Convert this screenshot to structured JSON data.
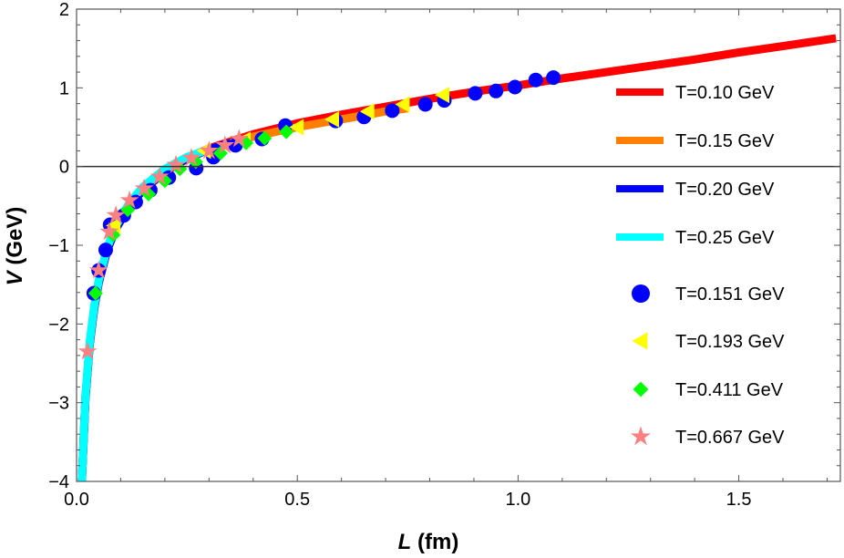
{
  "chart_data": {
    "type": "line",
    "title": "",
    "xlabel": "L (fm)",
    "xlabel_var": "L",
    "xlabel_unit": " (fm)",
    "ylabel": "V (GeV)",
    "ylabel_var": "V",
    "ylabel_unit": " (GeV)",
    "xlim": [
      0.0,
      1.73
    ],
    "ylim": [
      -4,
      2
    ],
    "x_ticks": [
      0.0,
      0.5,
      1.0,
      1.5
    ],
    "x_tick_labels": [
      "0.0",
      "0.5",
      "1.0",
      "1.5"
    ],
    "y_ticks": [
      -4,
      -3,
      -2,
      -1,
      0,
      1,
      2
    ],
    "y_tick_labels": [
      "−4",
      "−3",
      "−2",
      "−1",
      "0",
      "1",
      "2"
    ],
    "grid": false,
    "zero_line": true,
    "legend_position": "right",
    "series": [
      {
        "name": "T=0.10 GeV",
        "kind": "line",
        "color": "#ff0000",
        "x": [
          0.012,
          0.02,
          0.03,
          0.04,
          0.05,
          0.07,
          0.09,
          0.12,
          0.15,
          0.2,
          0.25,
          0.3,
          0.4,
          0.5,
          0.6,
          0.7,
          0.8,
          0.9,
          1.0,
          1.1,
          1.2,
          1.3,
          1.4,
          1.5,
          1.6,
          1.72
        ],
        "y": [
          -4.0,
          -2.95,
          -2.25,
          -1.8,
          -1.48,
          -1.05,
          -0.78,
          -0.5,
          -0.3,
          -0.07,
          0.1,
          0.23,
          0.41,
          0.55,
          0.66,
          0.76,
          0.86,
          0.95,
          1.03,
          1.12,
          1.2,
          1.28,
          1.36,
          1.45,
          1.53,
          1.63
        ]
      },
      {
        "name": "T=0.15 GeV",
        "kind": "line",
        "color": "#ff8000",
        "x": [
          0.012,
          0.02,
          0.03,
          0.04,
          0.05,
          0.07,
          0.09,
          0.12,
          0.15,
          0.2,
          0.25,
          0.3,
          0.4,
          0.5,
          0.6,
          0.7,
          0.75
        ],
        "y": [
          -4.0,
          -2.95,
          -2.25,
          -1.8,
          -1.48,
          -1.05,
          -0.78,
          -0.5,
          -0.3,
          -0.07,
          0.1,
          0.22,
          0.38,
          0.5,
          0.6,
          0.7,
          0.74
        ]
      },
      {
        "name": "T=0.20 GeV",
        "kind": "line",
        "color": "#0000ff",
        "x": [
          0.012,
          0.02,
          0.03,
          0.04,
          0.05,
          0.07,
          0.09,
          0.12,
          0.15,
          0.2,
          0.25,
          0.3,
          0.35
        ],
        "y": [
          -4.0,
          -2.95,
          -2.25,
          -1.8,
          -1.48,
          -1.05,
          -0.78,
          -0.5,
          -0.3,
          -0.06,
          0.1,
          0.22,
          0.3
        ]
      },
      {
        "name": "T=0.25 GeV",
        "kind": "line",
        "color": "#00ffff",
        "x": [
          0.012,
          0.02,
          0.03,
          0.04,
          0.05,
          0.07,
          0.09,
          0.12,
          0.15,
          0.2,
          0.25,
          0.3
        ],
        "y": [
          -4.0,
          -2.92,
          -2.22,
          -1.77,
          -1.45,
          -1.02,
          -0.74,
          -0.46,
          -0.26,
          -0.03,
          0.12,
          0.22
        ]
      },
      {
        "name": "T=0.151 GeV",
        "kind": "scatter",
        "marker": "circle",
        "color": "#0000ff",
        "x": [
          0.039,
          0.05,
          0.066,
          0.076,
          0.107,
          0.134,
          0.167,
          0.209,
          0.271,
          0.31,
          0.36,
          0.473,
          0.42,
          0.587,
          0.651,
          0.715,
          0.79,
          0.833,
          0.903,
          0.95,
          0.993,
          1.04,
          1.08
        ],
        "y": [
          -1.61,
          -1.32,
          -1.06,
          -0.74,
          -0.62,
          -0.45,
          -0.3,
          -0.14,
          -0.02,
          0.12,
          0.27,
          0.52,
          0.35,
          0.58,
          0.63,
          0.71,
          0.79,
          0.84,
          0.93,
          0.96,
          1.01,
          1.1,
          1.13
        ]
      },
      {
        "name": "T=0.193 GeV",
        "kind": "scatter",
        "marker": "triangle-left",
        "color": "#ffff00",
        "x": [
          0.085,
          0.29,
          0.38,
          0.5,
          0.58,
          0.66,
          0.74,
          0.83
        ],
        "y": [
          -0.75,
          0.2,
          0.34,
          0.5,
          0.6,
          0.7,
          0.79,
          0.91
        ]
      },
      {
        "name": "T=0.411 GeV",
        "kind": "scatter",
        "marker": "diamond",
        "color": "#00ff00",
        "x": [
          0.043,
          0.083,
          0.116,
          0.163,
          0.2,
          0.234,
          0.27,
          0.326,
          0.384,
          0.426,
          0.475
        ],
        "y": [
          -1.61,
          -0.87,
          -0.55,
          -0.35,
          -0.18,
          -0.03,
          0.06,
          0.17,
          0.3,
          0.36,
          0.44
        ]
      },
      {
        "name": "T=0.667 GeV",
        "kind": "scatter",
        "marker": "star",
        "color": "#ff8080",
        "x": [
          0.025,
          0.05,
          0.074,
          0.089,
          0.12,
          0.153,
          0.188,
          0.225,
          0.26,
          0.3,
          0.336,
          0.368
        ],
        "y": [
          -2.35,
          -1.32,
          -0.83,
          -0.62,
          -0.43,
          -0.28,
          -0.13,
          0.02,
          0.11,
          0.2,
          0.27,
          0.35
        ]
      }
    ]
  }
}
